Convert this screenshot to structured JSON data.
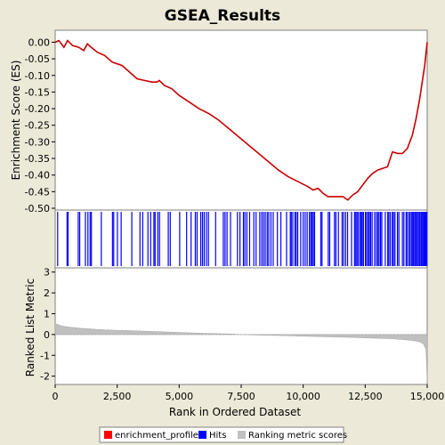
{
  "chart_data": {
    "title": "GSEA_Results",
    "x_axis": {
      "label": "Rank in Ordered Dataset",
      "range": [
        0,
        15000
      ],
      "ticks": [
        0,
        2500,
        5000,
        7500,
        10000,
        12500,
        15000
      ],
      "tick_labels": [
        "0",
        "2,500",
        "5,000",
        "7,500",
        "10,000",
        "12,500",
        "15,000"
      ]
    },
    "panels": [
      {
        "type": "line",
        "name": "enrichment_profile",
        "ylabel": "Enrichment Score (ES)",
        "ylim": [
          -0.5,
          0.02
        ],
        "yticks": [
          0.0,
          -0.05,
          -0.1,
          -0.15,
          -0.2,
          -0.25,
          -0.3,
          -0.35,
          -0.4,
          -0.45,
          -0.5
        ],
        "ytick_labels": [
          "0.00",
          "-0.05",
          "-0.10",
          "-0.15",
          "-0.20",
          "-0.25",
          "-0.30",
          "-0.35",
          "-0.40",
          "-0.45",
          "-0.50"
        ],
        "color": "#cc0000",
        "x": [
          0,
          150,
          350,
          500,
          700,
          950,
          1150,
          1300,
          1450,
          1700,
          2000,
          2300,
          2700,
          3000,
          3300,
          3600,
          3900,
          4100,
          4200,
          4400,
          4700,
          5000,
          5400,
          5800,
          6200,
          6600,
          7000,
          7400,
          7800,
          8200,
          8600,
          9000,
          9400,
          9800,
          10200,
          10400,
          10600,
          10800,
          11000,
          11300,
          11600,
          11800,
          12000,
          12200,
          12400,
          12600,
          12800,
          13000,
          13200,
          13400,
          13600,
          13800,
          14000,
          14200,
          14400,
          14550,
          14700,
          14800,
          14900,
          15000
        ],
        "y": [
          0.0,
          0.005,
          -0.015,
          0.005,
          -0.01,
          -0.015,
          -0.025,
          -0.005,
          -0.015,
          -0.03,
          -0.04,
          -0.06,
          -0.07,
          -0.09,
          -0.11,
          -0.115,
          -0.12,
          -0.12,
          -0.115,
          -0.13,
          -0.14,
          -0.16,
          -0.18,
          -0.2,
          -0.215,
          -0.235,
          -0.26,
          -0.285,
          -0.31,
          -0.335,
          -0.36,
          -0.385,
          -0.405,
          -0.42,
          -0.435,
          -0.445,
          -0.44,
          -0.455,
          -0.465,
          -0.465,
          -0.465,
          -0.475,
          -0.46,
          -0.45,
          -0.43,
          -0.41,
          -0.395,
          -0.385,
          -0.38,
          -0.375,
          -0.33,
          -0.335,
          -0.335,
          -0.32,
          -0.28,
          -0.23,
          -0.17,
          -0.12,
          -0.07,
          0.0
        ]
      },
      {
        "type": "hits",
        "name": "Hits",
        "color": "#0000ff",
        "positions": [
          100,
          480,
          520,
          930,
          990,
          1220,
          1320,
          1410,
          1460,
          1860,
          2310,
          2360,
          2510,
          2660,
          3090,
          3420,
          3530,
          3740,
          3850,
          3980,
          4030,
          4140,
          4210,
          4560,
          4640,
          5020,
          5300,
          5480,
          5650,
          5720,
          5870,
          5940,
          6010,
          6100,
          6180,
          6470,
          6780,
          6850,
          6930,
          7070,
          7350,
          7450,
          7590,
          7650,
          7730,
          7840,
          8010,
          8100,
          8250,
          8330,
          8400,
          8470,
          8550,
          8610,
          8700,
          8790,
          8960,
          9100,
          9330,
          9480,
          9520,
          9580,
          9670,
          9720,
          9780,
          9900,
          10000,
          10080,
          10160,
          10250,
          10310,
          10360,
          10410,
          10460,
          10710,
          10760,
          11010,
          11070,
          11260,
          11320,
          11420,
          11570,
          11630,
          11710,
          11790,
          11950,
          12070,
          12120,
          12170,
          12220,
          12290,
          12340,
          12380,
          12430,
          12510,
          12560,
          12620,
          12670,
          12720,
          12780,
          12880,
          12950,
          13010,
          13060,
          13120,
          13170,
          13310,
          13410,
          13450,
          13510,
          13590,
          13640,
          13700,
          13800,
          13860,
          14000,
          14060,
          14150,
          14200,
          14270,
          14320,
          14380,
          14420,
          14460,
          14510,
          14560,
          14600,
          14650,
          14700,
          14750,
          14790,
          14830,
          14870,
          14910,
          14950,
          14990
        ]
      },
      {
        "type": "area",
        "name": "Ranking metric scores",
        "ylabel": "Ranked List Metric",
        "ylim": [
          -2.4,
          3.2
        ],
        "yticks": [
          3,
          2,
          1,
          0,
          -1,
          -2
        ],
        "ytick_labels": [
          "3",
          "2",
          "1",
          "0",
          "-1",
          "-2"
        ],
        "color": "#c0c0c0",
        "x": [
          0,
          50,
          150,
          300,
          600,
          1000,
          1500,
          2000,
          3000,
          4000,
          5000,
          6000,
          7000,
          7500,
          8000,
          9000,
          10000,
          11000,
          12000,
          13000,
          13500,
          14000,
          14300,
          14500,
          14700,
          14850,
          14950,
          14980,
          15000
        ],
        "y": [
          0.55,
          0.5,
          0.45,
          0.4,
          0.35,
          0.3,
          0.26,
          0.22,
          0.18,
          0.14,
          0.1,
          0.06,
          0.03,
          0.0,
          -0.02,
          -0.05,
          -0.08,
          -0.11,
          -0.14,
          -0.18,
          -0.2,
          -0.24,
          -0.27,
          -0.3,
          -0.35,
          -0.45,
          -0.7,
          -1.5,
          -2.3
        ]
      }
    ],
    "legend": {
      "placement": "bottom",
      "entries": [
        {
          "label": "enrichment_profile",
          "color": "#ff0000"
        },
        {
          "label": "Hits",
          "color": "#0000ff"
        },
        {
          "label": "Ranking metric scores",
          "color": "#c0c0c0"
        }
      ]
    }
  }
}
